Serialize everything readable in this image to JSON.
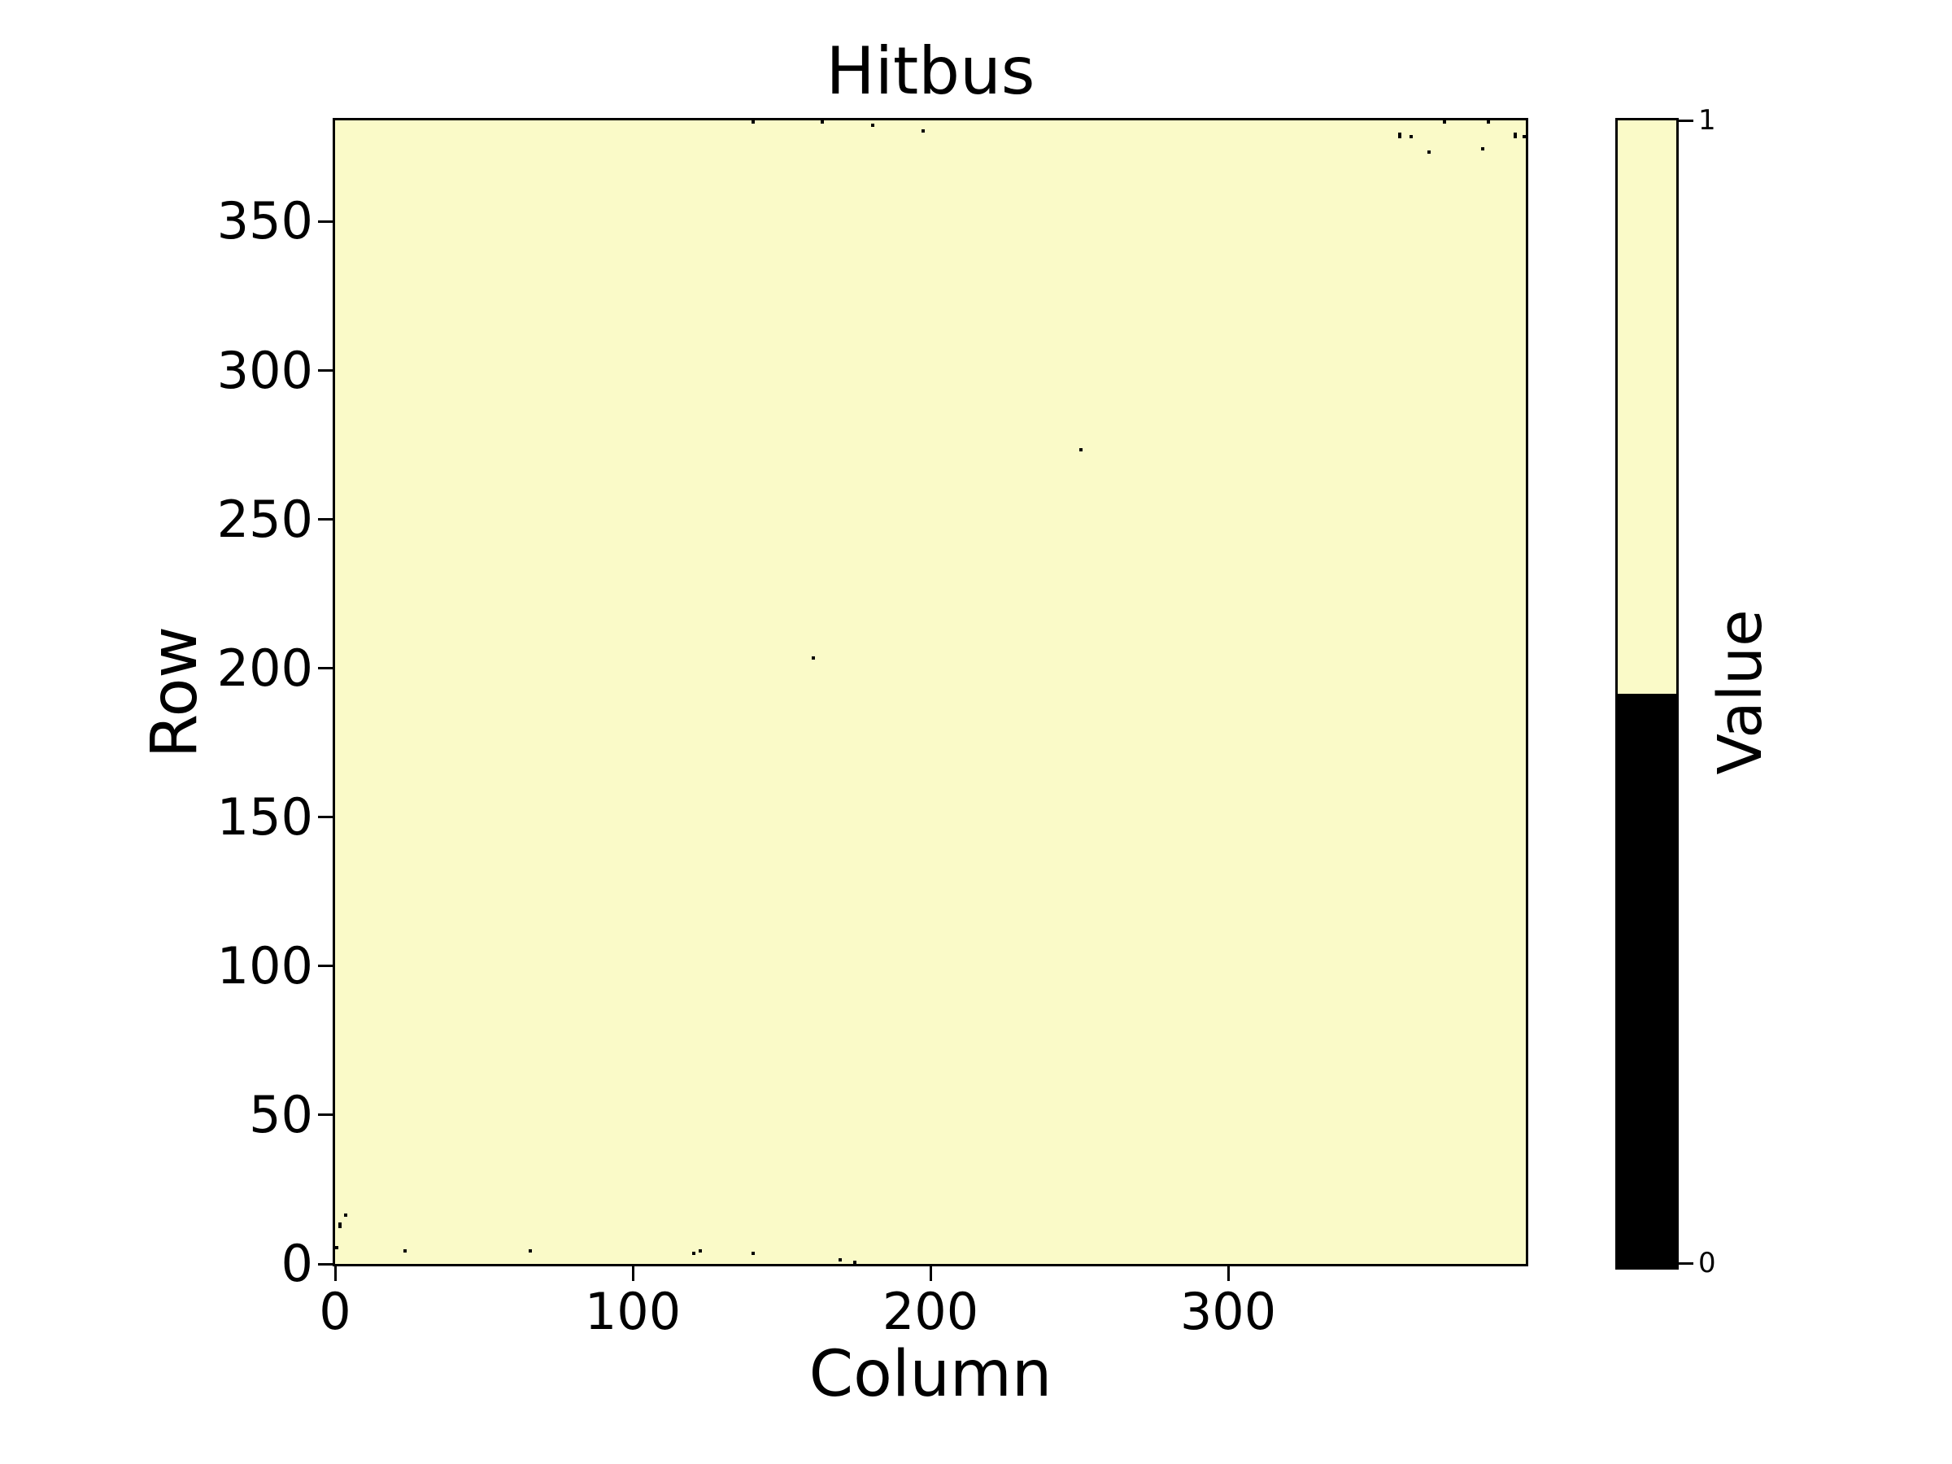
{
  "title": "Hitbus",
  "chart_data": {
    "type": "heatmap",
    "title": "Hitbus",
    "xlabel": "Column",
    "ylabel": "Row",
    "colorbar_label": "Value",
    "n_cols": 400,
    "n_rows": 384,
    "xlim": [
      0,
      400
    ],
    "ylim": [
      0,
      384
    ],
    "x_ticks": [
      0,
      100,
      200,
      300
    ],
    "y_ticks": [
      0,
      50,
      100,
      150,
      200,
      250,
      300,
      350
    ],
    "colorbar_ticks": [
      0,
      1
    ],
    "legend_position": "right-colorbar",
    "grid": false,
    "colors": {
      "value_1": "#fafac8",
      "value_0": "#000000"
    },
    "fill_value": 1,
    "zero_pixels": [
      [
        140,
        383
      ],
      [
        163,
        383
      ],
      [
        180,
        382
      ],
      [
        197,
        380
      ],
      [
        372,
        383
      ],
      [
        387,
        383
      ],
      [
        357,
        379
      ],
      [
        357,
        378
      ],
      [
        361,
        378
      ],
      [
        396,
        379
      ],
      [
        396,
        378
      ],
      [
        399,
        378
      ],
      [
        367,
        373
      ],
      [
        385,
        374
      ],
      [
        250,
        273
      ],
      [
        160,
        203
      ],
      [
        3,
        16
      ],
      [
        1,
        13
      ],
      [
        1,
        12
      ],
      [
        0,
        5
      ],
      [
        23,
        4
      ],
      [
        65,
        4
      ],
      [
        120,
        3
      ],
      [
        122,
        4
      ],
      [
        140,
        3
      ],
      [
        169,
        1
      ],
      [
        174,
        0
      ]
    ]
  }
}
